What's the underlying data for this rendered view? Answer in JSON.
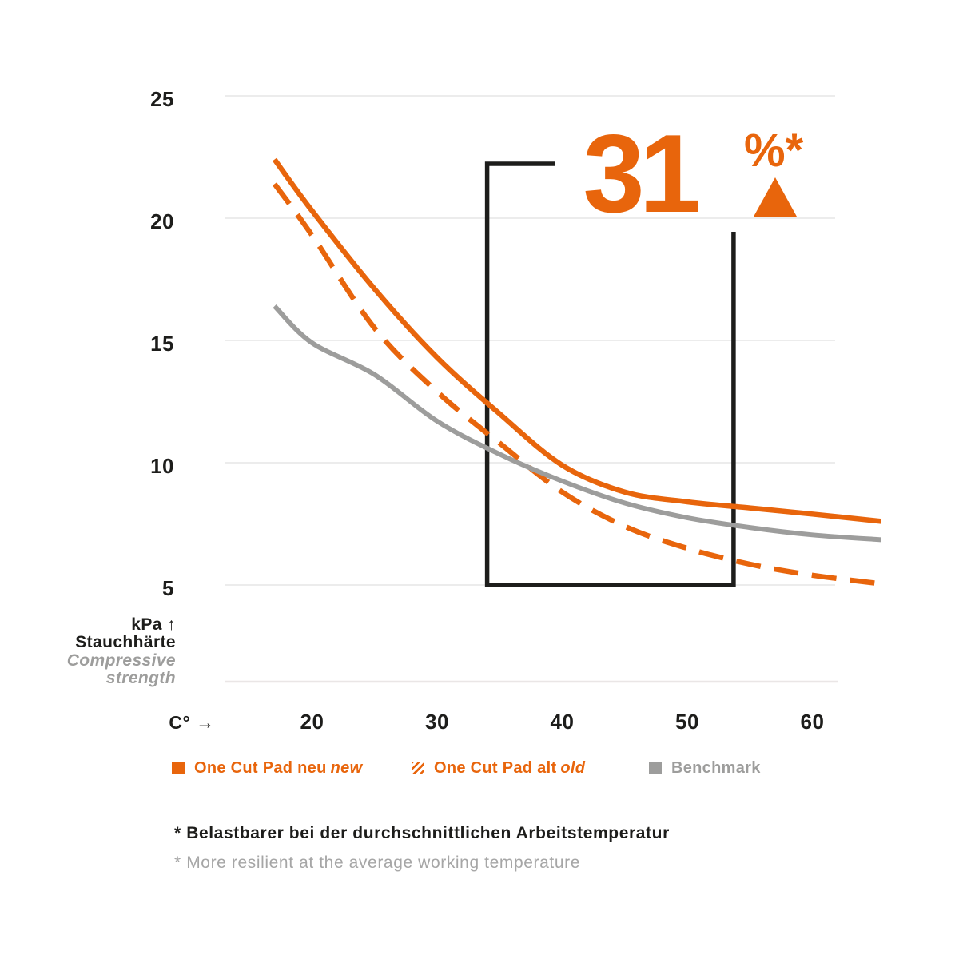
{
  "colors": {
    "orange": "#E8650C",
    "gray_line": "#9D9D9C",
    "dark": "#1D1D1B",
    "gridline": "#ECECEC",
    "axis_baseline": "#EAE6E6"
  },
  "y_axis": {
    "unit_line": "kPa ↑",
    "title_de": "Stauchhärte",
    "title_en_line1": "Compressive",
    "title_en_line2": "strength"
  },
  "x_axis": {
    "unit_label": "C° →"
  },
  "annotation_display": {
    "value": "31",
    "unit": "%*",
    "direction_icon": "up-triangle"
  },
  "legend": {
    "items": [
      {
        "label": "One Cut Pad neu",
        "label_italic": "new",
        "swatch": "orange-solid",
        "text_color": "orange"
      },
      {
        "label": "One Cut Pad alt",
        "label_italic": "old",
        "swatch": "orange-hatched",
        "text_color": "orange"
      },
      {
        "label": "Benchmark",
        "label_italic": "",
        "swatch": "gray-solid",
        "text_color": "gray"
      }
    ]
  },
  "footnotes": {
    "de": "* Belastbarer bei der durchschnittlichen Arbeitstemperatur",
    "en": "* More resilient at the average working temperature"
  },
  "chart_data": {
    "type": "line",
    "title": "",
    "xlabel": "C°",
    "ylabel": "kPa Stauchhärte / Compressive strength",
    "x_ticks": [
      20,
      30,
      40,
      50,
      60
    ],
    "y_ticks": [
      5,
      10,
      15,
      20,
      25
    ],
    "xlim": [
      14,
      69
    ],
    "ylim": [
      5,
      25
    ],
    "grid": true,
    "legend_position": "bottom",
    "x": [
      17,
      20,
      25,
      30,
      35,
      40,
      45,
      50,
      55,
      60,
      65.5
    ],
    "series": [
      {
        "name": "One Cut Pad neu new",
        "style": "solid",
        "color": "#E8650C",
        "values": [
          22.4,
          20.3,
          17.1,
          14.3,
          12.0,
          9.9,
          8.8,
          8.4,
          8.15,
          7.9,
          7.6
        ]
      },
      {
        "name": "One Cut Pad alt old",
        "style": "dashed",
        "color": "#E8650C",
        "values": [
          21.4,
          19.3,
          15.5,
          12.9,
          10.8,
          8.8,
          7.4,
          6.5,
          5.85,
          5.4,
          5.05
        ]
      },
      {
        "name": "Benchmark",
        "style": "solid",
        "color": "#9D9D9C",
        "values": [
          16.4,
          14.9,
          13.6,
          11.7,
          10.35,
          9.25,
          8.35,
          7.75,
          7.35,
          7.05,
          6.85
        ]
      }
    ],
    "annotation": {
      "value": 31,
      "unit": "%*",
      "direction": "up",
      "meaning": "improvement at average working temperature",
      "highlight_range_c": [
        34,
        53.7
      ]
    }
  }
}
